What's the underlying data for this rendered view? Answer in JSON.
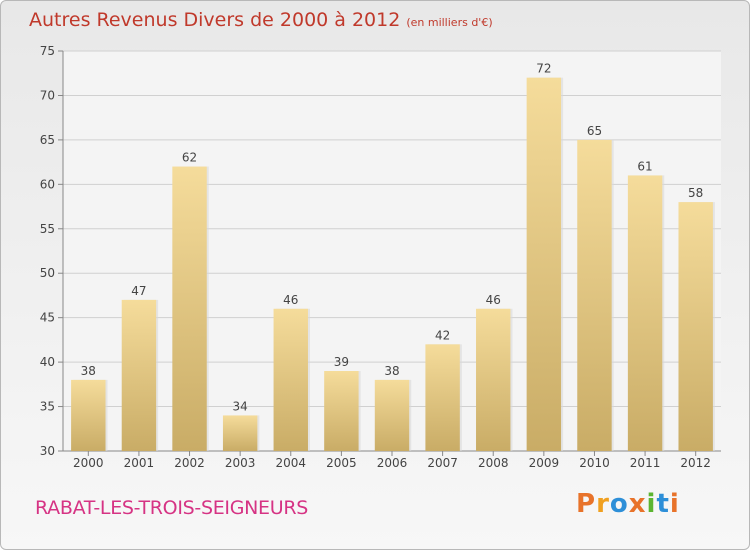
{
  "header": {
    "title": "Autres Revenus Divers de 2000 à 2012",
    "subtitle": "(en milliers d'€)"
  },
  "footer": {
    "city": "RABAT-LES-TROIS-SEIGNEURS",
    "logo": "Proxiti"
  },
  "colors": {
    "title": "#c0392b",
    "city": "#d63384",
    "bar_light": "#f5dc9b",
    "bar_dark": "#c9ac66",
    "logo_letters": [
      "#e8732a",
      "#f0a020",
      "#2d8fd8",
      "#e8732a",
      "#5cb531",
      "#2d8fd8",
      "#e8732a"
    ]
  },
  "chart_data": {
    "type": "bar",
    "categories": [
      "2000",
      "2001",
      "2002",
      "2003",
      "2004",
      "2005",
      "2006",
      "2007",
      "2008",
      "2009",
      "2010",
      "2011",
      "2012"
    ],
    "values": [
      38,
      47,
      62,
      34,
      46,
      39,
      38,
      42,
      46,
      72,
      65,
      61,
      58
    ],
    "ylim": [
      30,
      75
    ],
    "yticks": [
      30,
      35,
      40,
      45,
      50,
      55,
      60,
      65,
      70,
      75
    ],
    "grid": true,
    "data_labels": true
  }
}
